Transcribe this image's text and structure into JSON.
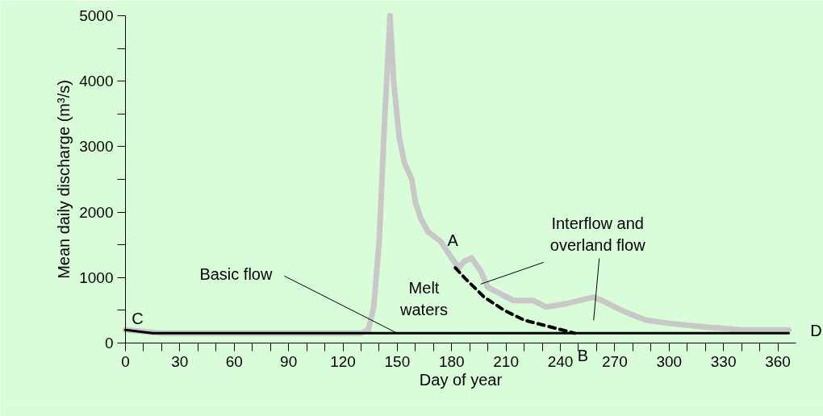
{
  "chart_data": {
    "type": "line",
    "xlabel": "Day of year",
    "ylabel": "Mean daily discharge (m³/s)",
    "xlim": [
      0,
      370
    ],
    "ylim": [
      0,
      5000
    ],
    "xticks": [
      0,
      {
        "value": 10,
        "label": null
      },
      {
        "value": 20,
        "label": null
      },
      30,
      {
        "value": 40,
        "label": null
      },
      {
        "value": 50,
        "label": null
      },
      60,
      {
        "value": 70,
        "label": null
      },
      {
        "value": 80,
        "label": null
      },
      90,
      {
        "value": 100,
        "label": null
      },
      {
        "value": 110,
        "label": null
      },
      120,
      {
        "value": 130,
        "label": null
      },
      {
        "value": 140,
        "label": null
      },
      150,
      {
        "value": 160,
        "label": null
      },
      {
        "value": 170,
        "label": null
      },
      180,
      {
        "value": 190,
        "label": null
      },
      {
        "value": 200,
        "label": null
      },
      210,
      {
        "value": 220,
        "label": null
      },
      {
        "value": 230,
        "label": null
      },
      240,
      {
        "value": 250,
        "label": null
      },
      {
        "value": 260,
        "label": null
      },
      270,
      {
        "value": 280,
        "label": null
      },
      {
        "value": 290,
        "label": null
      },
      300,
      {
        "value": 310,
        "label": null
      },
      {
        "value": 320,
        "label": null
      },
      330,
      {
        "value": 340,
        "label": null
      },
      {
        "value": 350,
        "label": null
      },
      360
    ],
    "yticks": [
      0,
      {
        "value": 500,
        "label": null
      },
      1000,
      {
        "value": 1500,
        "label": null
      },
      2000,
      {
        "value": 2500,
        "label": null
      },
      3000,
      {
        "value": 3500,
        "label": null
      },
      4000,
      {
        "value": 4500,
        "label": null
      },
      5000
    ],
    "grid": false,
    "marker": "none",
    "series": [
      {
        "color": "#c8c8c8",
        "line_style": "solid",
        "x": [
          0,
          20,
          40,
          60,
          80,
          100,
          120,
          130,
          134,
          137,
          140,
          143,
          146,
          148,
          151,
          154,
          158,
          160,
          163,
          167,
          174,
          180,
          184,
          187,
          191,
          196,
          200,
          207,
          214,
          225,
          232,
          243,
          258,
          263,
          270,
          278,
          287,
          300,
          318,
          340,
          366
        ],
        "values": [
          200,
          150,
          150,
          150,
          150,
          150,
          150,
          150,
          200,
          550,
          1550,
          3400,
          5000,
          4000,
          3150,
          2750,
          2500,
          2150,
          1900,
          1700,
          1550,
          1300,
          1150,
          1250,
          1300,
          1100,
          850,
          750,
          650,
          650,
          550,
          600,
          700,
          650,
          550,
          450,
          350,
          300,
          250,
          200,
          200
        ]
      },
      {
        "color": "#000000",
        "line_style": "solid",
        "x": [
          0,
          15,
          366
        ],
        "values": [
          200,
          150,
          150
        ]
      },
      {
        "color": "#000000",
        "line_style": "dashed",
        "x": [
          182,
          187,
          198,
          209,
          220,
          234,
          248
        ],
        "values": [
          1150,
          1000,
          700,
          500,
          350,
          250,
          150
        ]
      }
    ],
    "annotations": [
      {
        "text": "C",
        "x": 0,
        "y": 200
      },
      {
        "text": "Basic flow",
        "x": 150,
        "y": 150
      },
      "Melt\nwaters",
      {
        "text": "A",
        "x": 182,
        "y": 1150
      },
      {
        "text": "B",
        "x": 248,
        "y": 150
      },
      {
        "text": "D",
        "x": 366,
        "y": 150
      },
      {
        "text": "Interflow and\noverland flow",
        "x": 196,
        "y": 900
      }
    ]
  }
}
